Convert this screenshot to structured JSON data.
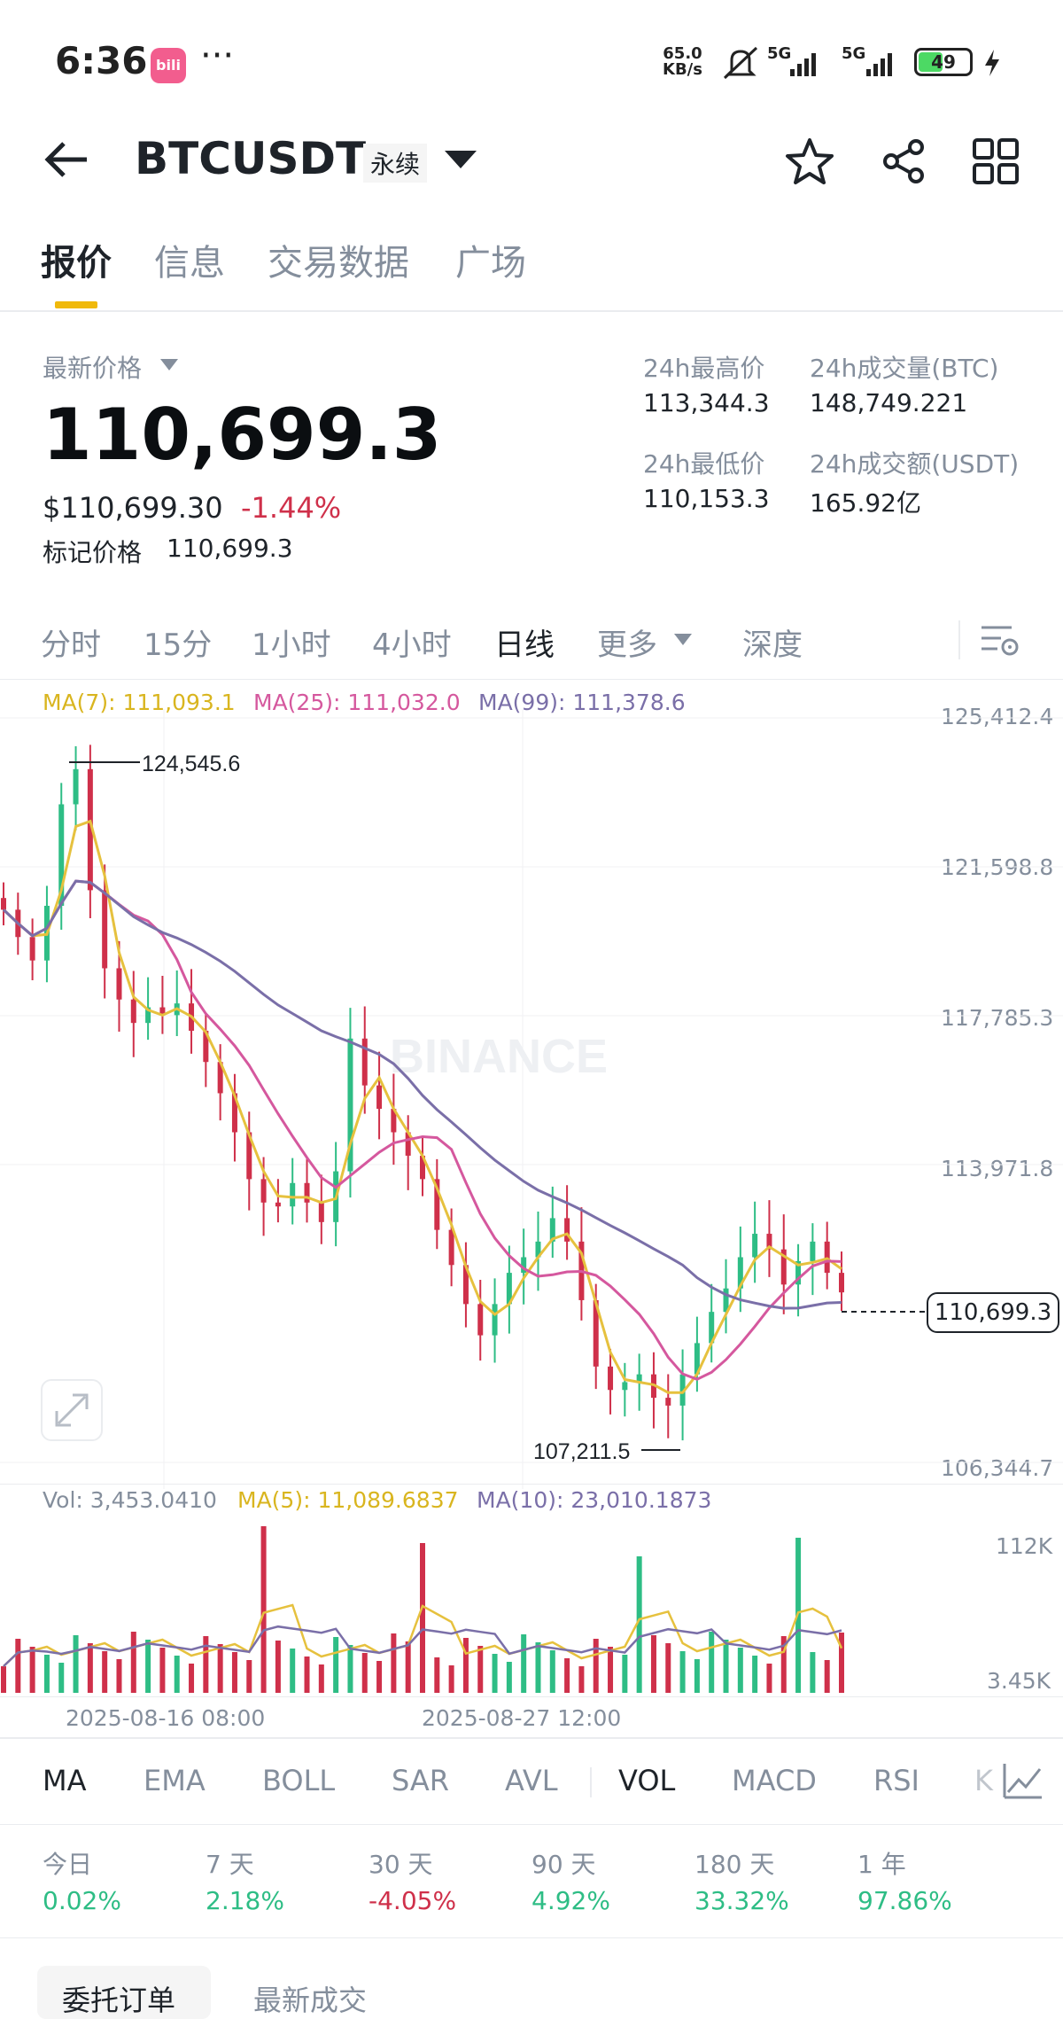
{
  "status_bar": {
    "time": "6:36",
    "app_badge": "bili",
    "more": "···",
    "net_speed_value": "65.0",
    "net_speed_unit": "KB/s",
    "sig1": "5G",
    "sig2": "5G",
    "battery": "49",
    "battery_level": 0.49
  },
  "header": {
    "symbol": "BTCUSDT",
    "contract_type": "永续"
  },
  "tabs": [
    {
      "label": "报价"
    },
    {
      "label": "信息"
    },
    {
      "label": "交易数据"
    },
    {
      "label": "广场"
    }
  ],
  "price": {
    "latest_label": "最新价格",
    "last": "110,699.3",
    "usd": "$110,699.30",
    "change": "-1.44%",
    "mark_label": "标记价格",
    "mark": "110,699.3"
  },
  "stats": {
    "high_label": "24h最高价",
    "high": "113,344.3",
    "low_label": "24h最低价",
    "low": "110,153.3",
    "vol_btc_label": "24h成交量(BTC)",
    "vol_btc": "148,749.221",
    "vol_usdt_label": "24h成交额(USDT)",
    "vol_usdt": "165.92亿"
  },
  "intervals": [
    {
      "label": "分时"
    },
    {
      "label": "15分"
    },
    {
      "label": "1小时"
    },
    {
      "label": "4小时"
    },
    {
      "label": "日线"
    },
    {
      "label": "更多"
    },
    {
      "label": "深度"
    }
  ],
  "chart_legend": {
    "ma7": "MA(7): 111,093.1",
    "ma25": "MA(25): 111,032.0",
    "ma99": "MA(99): 111,378.6",
    "vol": "Vol: 3,453.0410",
    "vma5": "MA(5): 11,089.6837",
    "vma10": "MA(10): 23,010.1873"
  },
  "chart_axis": {
    "p1": "125,412.4",
    "p2": "121,598.8",
    "p3": "117,785.3",
    "p4": "113,971.8",
    "p5": "106,344.7",
    "current": "110,699.3",
    "high_mark": "124,545.6",
    "low_mark": "107,211.5",
    "vol_top": "112K",
    "vol_bottom": "3.45K",
    "date1": "2025-08-16 08:00",
    "date2": "2025-08-27 12:00",
    "watermark": "BINANCE"
  },
  "indicators": [
    {
      "label": "MA"
    },
    {
      "label": "EMA"
    },
    {
      "label": "BOLL"
    },
    {
      "label": "SAR"
    },
    {
      "label": "AVL"
    },
    {
      "label": "VOL"
    },
    {
      "label": "MACD"
    },
    {
      "label": "RSI"
    },
    {
      "label": "K"
    }
  ],
  "performance": [
    {
      "label": "今日",
      "value": "0.02%"
    },
    {
      "label": "7 天",
      "value": "2.18%"
    },
    {
      "label": "30 天",
      "value": "-4.05%"
    },
    {
      "label": "90 天",
      "value": "4.92%"
    },
    {
      "label": "180 天",
      "value": "33.32%"
    },
    {
      "label": "1 年",
      "value": "97.86%"
    }
  ],
  "bottom_tabs": [
    {
      "label": "委托订单"
    },
    {
      "label": "最新成交"
    }
  ],
  "colors": {
    "up": "#2ebd85",
    "down": "#cf304a",
    "accent": "#f0b90b",
    "ma7": "#e6c13e",
    "ma25": "#d5589e",
    "ma99": "#7a6fa8"
  },
  "chart_data": {
    "type": "candlestick",
    "interval": "4小时",
    "y_axis_ticks": [
      125412.4,
      121598.8,
      117785.3,
      113971.8,
      106344.7
    ],
    "ylim": [
      106344.7,
      125412.4
    ],
    "x_ticks": [
      "2025-08-16 08:00",
      "2025-08-27 12:00"
    ],
    "annotated_high": 124545.6,
    "annotated_low": 107211.5,
    "last_price": 110699.3,
    "ma_values": {
      "MA(7)": 111093.1,
      "MA(25)": 111032.0,
      "MA(99)": 111378.6
    },
    "approx_close_series": [
      120500,
      119800,
      119200,
      120600,
      123200,
      124100,
      121000,
      119000,
      118200,
      117600,
      118000,
      117800,
      118100,
      117400,
      116600,
      115800,
      114800,
      113600,
      113000,
      112900,
      113500,
      113000,
      112500,
      113800,
      117200,
      116000,
      115400,
      114800,
      114200,
      113600,
      112300,
      111400,
      110400,
      109600,
      110400,
      111200,
      111600,
      112000,
      112600,
      112000,
      110500,
      108800,
      108200,
      108400,
      108600,
      108000,
      107800,
      108600,
      109400,
      110200,
      110800,
      111600,
      112200,
      111800,
      110900,
      111500,
      112000,
      111200,
      110699
    ]
  }
}
